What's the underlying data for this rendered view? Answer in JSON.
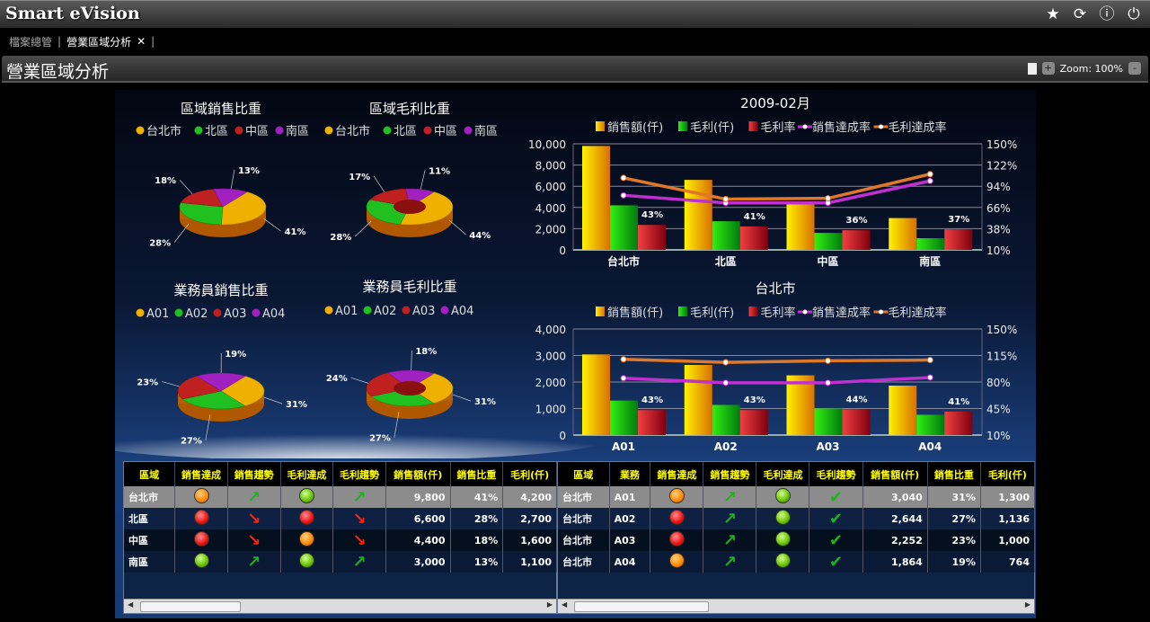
{
  "app": {
    "title": "Smart eVision",
    "icons": [
      "star-icon",
      "refresh-icon",
      "help-icon",
      "power-icon"
    ]
  },
  "tabs": [
    {
      "label": "檔案總管"
    },
    {
      "label": "營業區域分析",
      "close": "✕"
    }
  ],
  "page": {
    "title": "營業區域分析",
    "zoom_label": "Zoom: 100%",
    "zoom_in": "+",
    "zoom_out": "-"
  },
  "colors": {
    "sales": "#f0c000",
    "profit": "#18c010",
    "margin": "#d02828",
    "sales_ach": "#c030d0",
    "profit_ach": "#e07828",
    "north_pie": "#20c020",
    "taipei_pie": "#f0b000",
    "central_pie": "#c02020",
    "south_pie": "#a020c0"
  },
  "pies": [
    {
      "title": "區域銷售比重",
      "legend": [
        "台北市",
        "北區",
        "中區",
        "南區"
      ],
      "values": [
        41,
        28,
        18,
        13
      ],
      "labels": [
        "41%",
        "28%",
        "18%",
        "13%"
      ],
      "donut": false
    },
    {
      "title": "區域毛利比重",
      "legend": [
        "台北市",
        "北區",
        "中區",
        "南區"
      ],
      "values": [
        44,
        28,
        17,
        11
      ],
      "labels": [
        "44%",
        "28%",
        "17%",
        "11%"
      ],
      "donut": true
    },
    {
      "title": "業務員銷售比重",
      "legend": [
        "A01",
        "A02",
        "A03",
        "A04"
      ],
      "values": [
        31,
        27,
        23,
        19
      ],
      "labels": [
        "31%",
        "27%",
        "23%",
        "19%"
      ],
      "donut": false
    },
    {
      "title": "業務員毛利比重",
      "legend": [
        "A01",
        "A02",
        "A03",
        "A04"
      ],
      "values": [
        31,
        27,
        24,
        18
      ],
      "labels": [
        "31%",
        "27%",
        "24%",
        "18%"
      ],
      "donut": true
    }
  ],
  "chart_data": [
    {
      "type": "bar",
      "title": "2009-02月",
      "categories": [
        "台北市",
        "北區",
        "中區",
        "南區"
      ],
      "legend": [
        "銷售額(仟)",
        "毛利(仟)",
        "毛利率",
        "銷售達成率",
        "毛利達成率"
      ],
      "ylim": [
        0,
        10000
      ],
      "yticks": [
        "10,000",
        "8,000",
        "6,000",
        "4,000",
        "2,000",
        "0"
      ],
      "y2lim": [
        10,
        150
      ],
      "y2ticks": [
        "150%",
        "122%",
        "94%",
        "66%",
        "38%",
        "10%"
      ],
      "series": [
        {
          "name": "銷售額(仟)",
          "type": "bar",
          "values": [
            9800,
            6600,
            4400,
            3000
          ]
        },
        {
          "name": "毛利(仟)",
          "type": "bar",
          "values": [
            4200,
            2700,
            1600,
            1100
          ]
        },
        {
          "name": "毛利率",
          "type": "bar",
          "axis": "right",
          "values": [
            43,
            41,
            36,
            37
          ],
          "labels": [
            "43%",
            "41%",
            "36%",
            "37%"
          ]
        },
        {
          "name": "銷售達成率",
          "type": "line",
          "axis": "right",
          "values": [
            82,
            72,
            72,
            101
          ]
        },
        {
          "name": "毛利達成率",
          "type": "line",
          "axis": "right",
          "values": [
            105,
            77,
            78,
            110
          ]
        }
      ]
    },
    {
      "type": "bar",
      "title": "台北市",
      "categories": [
        "A01",
        "A02",
        "A03",
        "A04"
      ],
      "legend": [
        "銷售額(仟)",
        "毛利(仟)",
        "毛利率",
        "銷售達成率",
        "毛利達成率"
      ],
      "ylim": [
        0,
        4000
      ],
      "yticks": [
        "4,000",
        "3,000",
        "2,000",
        "1,000",
        "0"
      ],
      "y2lim": [
        10,
        150
      ],
      "y2ticks": [
        "150%",
        "115%",
        "80%",
        "45%",
        "10%"
      ],
      "series": [
        {
          "name": "銷售額(仟)",
          "type": "bar",
          "values": [
            3040,
            2644,
            2252,
            1864
          ]
        },
        {
          "name": "毛利(仟)",
          "type": "bar",
          "values": [
            1300,
            1136,
            1000,
            764
          ]
        },
        {
          "name": "毛利率",
          "type": "bar",
          "axis": "right",
          "values": [
            43,
            43,
            44,
            41
          ],
          "labels": [
            "43%",
            "43%",
            "44%",
            "41%"
          ]
        },
        {
          "name": "銷售達成率",
          "type": "line",
          "axis": "right",
          "values": [
            85,
            79,
            79,
            86
          ]
        },
        {
          "name": "毛利達成率",
          "type": "line",
          "axis": "right",
          "values": [
            110,
            106,
            108,
            109
          ]
        }
      ]
    }
  ],
  "table1": {
    "headers": [
      "區域",
      "銷售達成",
      "銷售趨勢",
      "毛利達成",
      "毛利趨勢",
      "銷售額(仟)",
      "銷售比重",
      "毛利(仟)"
    ],
    "rows": [
      [
        "台北市",
        "orange",
        "up",
        "green",
        "up",
        "9,800",
        "41%",
        "4,200"
      ],
      [
        "北區",
        "red",
        "down",
        "red",
        "down",
        "6,600",
        "28%",
        "2,700"
      ],
      [
        "中區",
        "red",
        "down",
        "orange",
        "down",
        "4,400",
        "18%",
        "1,600"
      ],
      [
        "南區",
        "green",
        "up",
        "green",
        "up",
        "3,000",
        "13%",
        "1,100"
      ]
    ]
  },
  "table2": {
    "headers": [
      "區域",
      "業務",
      "銷售達成",
      "銷售趨勢",
      "毛利達成",
      "毛利趨勢",
      "銷售額(仟)",
      "銷售比重",
      "毛利(仟)"
    ],
    "rows": [
      [
        "台北市",
        "A01",
        "orange",
        "up",
        "green",
        "check",
        "3,040",
        "31%",
        "1,300"
      ],
      [
        "台北市",
        "A02",
        "red",
        "up",
        "green",
        "check",
        "2,644",
        "27%",
        "1,136"
      ],
      [
        "台北市",
        "A03",
        "red",
        "up",
        "green",
        "check",
        "2,252",
        "23%",
        "1,000"
      ],
      [
        "台北市",
        "A04",
        "orange",
        "up",
        "green",
        "check",
        "1,864",
        "19%",
        "764"
      ]
    ]
  }
}
